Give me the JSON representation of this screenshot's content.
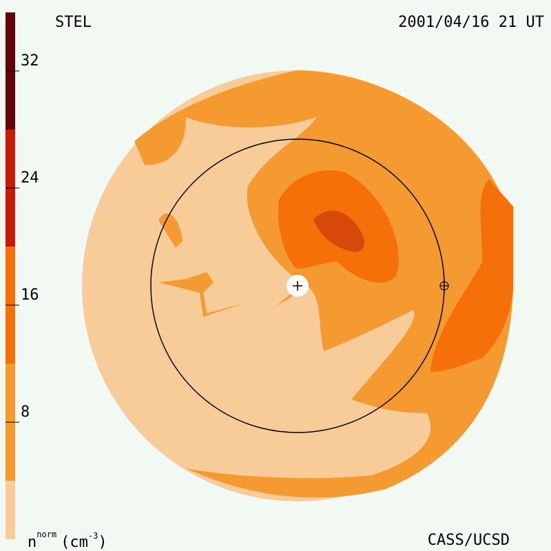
{
  "chart_data": {
    "type": "colorbar",
    "title": "STEL",
    "date": "2001/04/16 21 UT",
    "credit": "CASS/UCSD",
    "ylabel": {
      "base": "n",
      "sup": "norm",
      "unit": "(cm",
      "unit_sup": "-3",
      "close": ")"
    },
    "bins": [
      0,
      4,
      12,
      20,
      28,
      36
    ],
    "colors": [
      "#f8cc98",
      "#f59a30",
      "#f57008",
      "#c81a08",
      "#600606"
    ],
    "ylim": [
      0,
      36
    ],
    "yticks": [
      8,
      16,
      24,
      32
    ]
  }
}
